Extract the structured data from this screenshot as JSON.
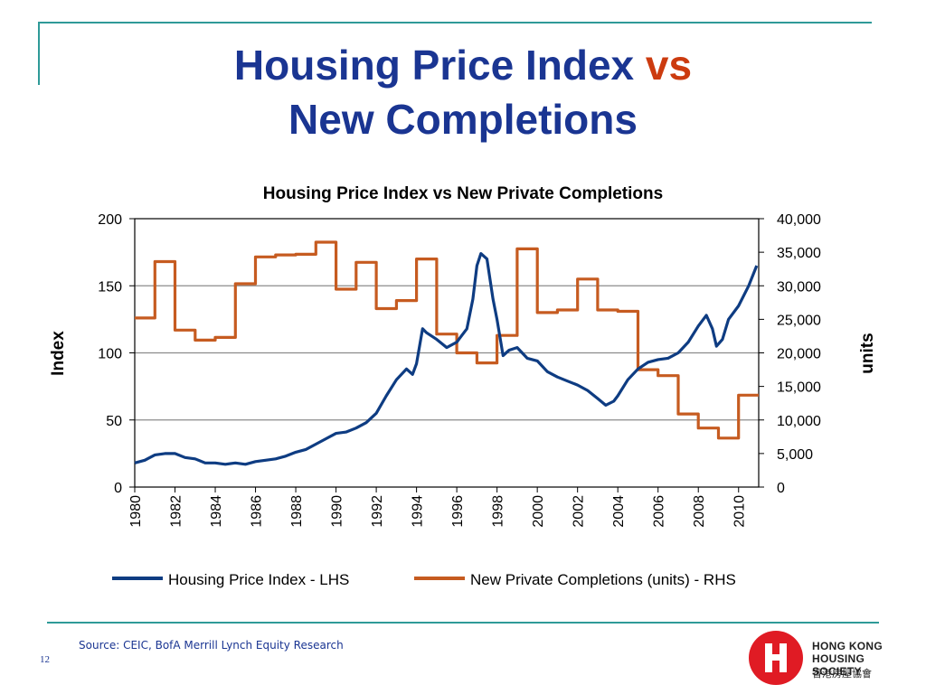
{
  "slide": {
    "title_line1_main": "Housing Price Index",
    "title_line1_vs": "vs",
    "title_line2": "New Completions",
    "source": "Source: CEIC, BofA Merrill Lynch Equity Research",
    "page_number": "12",
    "logo": {
      "line1": "HONG KONG",
      "line2": "HOUSING SOCIETY",
      "line3": "香港房屋協會"
    }
  },
  "colors": {
    "title_blue": "#1a3592",
    "vs_red": "#cc3b0f",
    "accent_teal": "#2f9a98",
    "hpi_series": "#0e3c82",
    "completions_series": "#c65b20",
    "logo_red": "#e01b24"
  },
  "chart_data": {
    "type": "line",
    "title": "Housing Price Index vs New Private Completions",
    "y_left": {
      "label": "Index",
      "lim": [
        0,
        200
      ],
      "ticks": [
        "0",
        "50",
        "100",
        "150",
        "200"
      ]
    },
    "y_right": {
      "label": "units",
      "lim": [
        0,
        40000
      ],
      "ticks": [
        "0",
        "5,000",
        "10,000",
        "15,000",
        "20,000",
        "25,000",
        "30,000",
        "35,000",
        "40,000"
      ]
    },
    "x": {
      "lim": [
        1980,
        2011
      ],
      "ticks": [
        "1980",
        "1982",
        "1984",
        "1986",
        "1988",
        "1990",
        "1992",
        "1994",
        "1996",
        "1998",
        "2000",
        "2002",
        "2004",
        "2006",
        "2008",
        "2010"
      ]
    },
    "grid": "horizontal",
    "legend_position": "bottom",
    "series": [
      {
        "name": "Housing Price Index - LHS",
        "axis": "left",
        "style": "line",
        "color": "#0e3c82",
        "points": [
          [
            1980.0,
            18
          ],
          [
            1980.5,
            20
          ],
          [
            1981.0,
            24
          ],
          [
            1981.5,
            25
          ],
          [
            1982.0,
            25
          ],
          [
            1982.5,
            22
          ],
          [
            1983.0,
            21
          ],
          [
            1983.5,
            18
          ],
          [
            1984.0,
            18
          ],
          [
            1984.5,
            17
          ],
          [
            1985.0,
            18
          ],
          [
            1985.5,
            17
          ],
          [
            1986.0,
            19
          ],
          [
            1986.5,
            20
          ],
          [
            1987.0,
            21
          ],
          [
            1987.5,
            23
          ],
          [
            1988.0,
            26
          ],
          [
            1988.5,
            28
          ],
          [
            1989.0,
            32
          ],
          [
            1989.5,
            36
          ],
          [
            1990.0,
            40
          ],
          [
            1990.5,
            41
          ],
          [
            1991.0,
            44
          ],
          [
            1991.5,
            48
          ],
          [
            1992.0,
            55
          ],
          [
            1992.5,
            68
          ],
          [
            1993.0,
            80
          ],
          [
            1993.5,
            88
          ],
          [
            1993.8,
            84
          ],
          [
            1994.0,
            92
          ],
          [
            1994.3,
            118
          ],
          [
            1994.5,
            115
          ],
          [
            1995.0,
            110
          ],
          [
            1995.5,
            104
          ],
          [
            1996.0,
            108
          ],
          [
            1996.5,
            118
          ],
          [
            1996.8,
            140
          ],
          [
            1997.0,
            165
          ],
          [
            1997.2,
            174
          ],
          [
            1997.5,
            170
          ],
          [
            1997.8,
            140
          ],
          [
            1998.0,
            125
          ],
          [
            1998.3,
            98
          ],
          [
            1998.6,
            102
          ],
          [
            1999.0,
            104
          ],
          [
            1999.5,
            96
          ],
          [
            2000.0,
            94
          ],
          [
            2000.5,
            86
          ],
          [
            2001.0,
            82
          ],
          [
            2001.5,
            79
          ],
          [
            2002.0,
            76
          ],
          [
            2002.5,
            72
          ],
          [
            2003.0,
            66
          ],
          [
            2003.4,
            61
          ],
          [
            2003.8,
            64
          ],
          [
            2004.0,
            68
          ],
          [
            2004.5,
            80
          ],
          [
            2005.0,
            88
          ],
          [
            2005.5,
            93
          ],
          [
            2006.0,
            95
          ],
          [
            2006.5,
            96
          ],
          [
            2007.0,
            100
          ],
          [
            2007.5,
            108
          ],
          [
            2008.0,
            120
          ],
          [
            2008.4,
            128
          ],
          [
            2008.7,
            118
          ],
          [
            2008.9,
            105
          ],
          [
            2009.2,
            110
          ],
          [
            2009.5,
            125
          ],
          [
            2010.0,
            135
          ],
          [
            2010.5,
            150
          ],
          [
            2010.9,
            165
          ]
        ]
      },
      {
        "name": "New Private Completions (units) - RHS",
        "axis": "right",
        "style": "step",
        "color": "#c65b20",
        "points": [
          [
            1980,
            25200
          ],
          [
            1981,
            33600
          ],
          [
            1982,
            23400
          ],
          [
            1983,
            21900
          ],
          [
            1984,
            22300
          ],
          [
            1985,
            30300
          ],
          [
            1986,
            34300
          ],
          [
            1987,
            34600
          ],
          [
            1988,
            34700
          ],
          [
            1989,
            36500
          ],
          [
            1990,
            29500
          ],
          [
            1991,
            33500
          ],
          [
            1992,
            26600
          ],
          [
            1993,
            27800
          ],
          [
            1994,
            34000
          ],
          [
            1995,
            22800
          ],
          [
            1996,
            20000
          ],
          [
            1997,
            18500
          ],
          [
            1998,
            22600
          ],
          [
            1999,
            35500
          ],
          [
            2000,
            26000
          ],
          [
            2001,
            26400
          ],
          [
            2002,
            31000
          ],
          [
            2003,
            26400
          ],
          [
            2004,
            26200
          ],
          [
            2005,
            17500
          ],
          [
            2006,
            16600
          ],
          [
            2007,
            10900
          ],
          [
            2008,
            8800
          ],
          [
            2009,
            7300
          ],
          [
            2010,
            13700
          ]
        ],
        "end_x": 2011
      }
    ]
  }
}
